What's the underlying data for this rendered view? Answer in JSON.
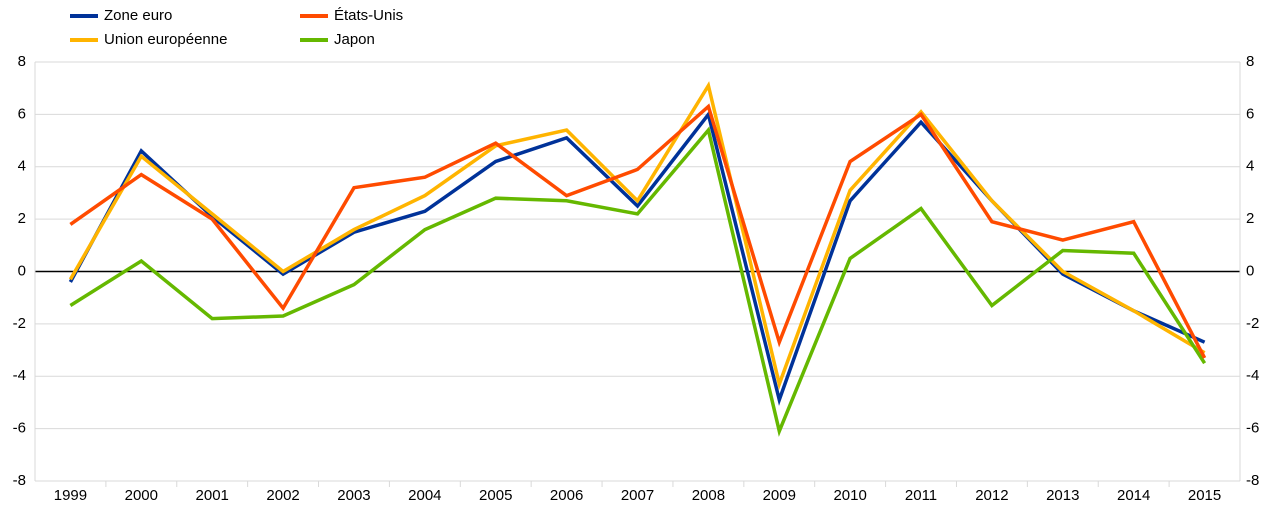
{
  "chart_data": {
    "type": "line",
    "categories": [
      "1999",
      "2000",
      "2001",
      "2002",
      "2003",
      "2004",
      "2005",
      "2006",
      "2007",
      "2008",
      "2009",
      "2010",
      "2011",
      "2012",
      "2013",
      "2014",
      "2015"
    ],
    "series": [
      {
        "name": "Zone euro",
        "color": "#003299",
        "values": [
          -0.4,
          4.6,
          2.1,
          -0.1,
          1.5,
          2.3,
          4.2,
          5.1,
          2.5,
          6.0,
          -4.9,
          2.7,
          5.7,
          2.7,
          -0.1,
          -1.5,
          -2.7
        ]
      },
      {
        "name": "Union européenne",
        "color": "#ffb400",
        "values": [
          -0.3,
          4.4,
          2.2,
          0.0,
          1.6,
          2.9,
          4.8,
          5.4,
          2.7,
          7.1,
          -4.3,
          3.1,
          6.1,
          2.7,
          0.0,
          -1.5,
          -3.1
        ]
      },
      {
        "name": "États-Unis",
        "color": "#ff4b00",
        "values": [
          1.8,
          3.7,
          2.0,
          -1.4,
          3.2,
          3.6,
          4.9,
          2.9,
          3.9,
          6.3,
          -2.7,
          4.2,
          6.0,
          1.9,
          1.2,
          1.9,
          -3.3
        ]
      },
      {
        "name": "Japon",
        "color": "#65b800",
        "values": [
          -1.3,
          0.4,
          -1.8,
          -1.7,
          -0.5,
          1.6,
          2.8,
          2.7,
          2.2,
          5.4,
          -6.1,
          0.5,
          2.4,
          -1.3,
          0.8,
          0.7,
          -3.5
        ]
      }
    ],
    "ylim": [
      -8,
      8
    ],
    "yticks": [
      -8,
      -6,
      -4,
      -2,
      0,
      2,
      4,
      6,
      8
    ],
    "y2lim": [
      -8,
      8
    ],
    "y2ticks": [
      -8,
      -6,
      -4,
      -2,
      0,
      2,
      4,
      6,
      8
    ],
    "grid": true,
    "legend": "top-left"
  }
}
